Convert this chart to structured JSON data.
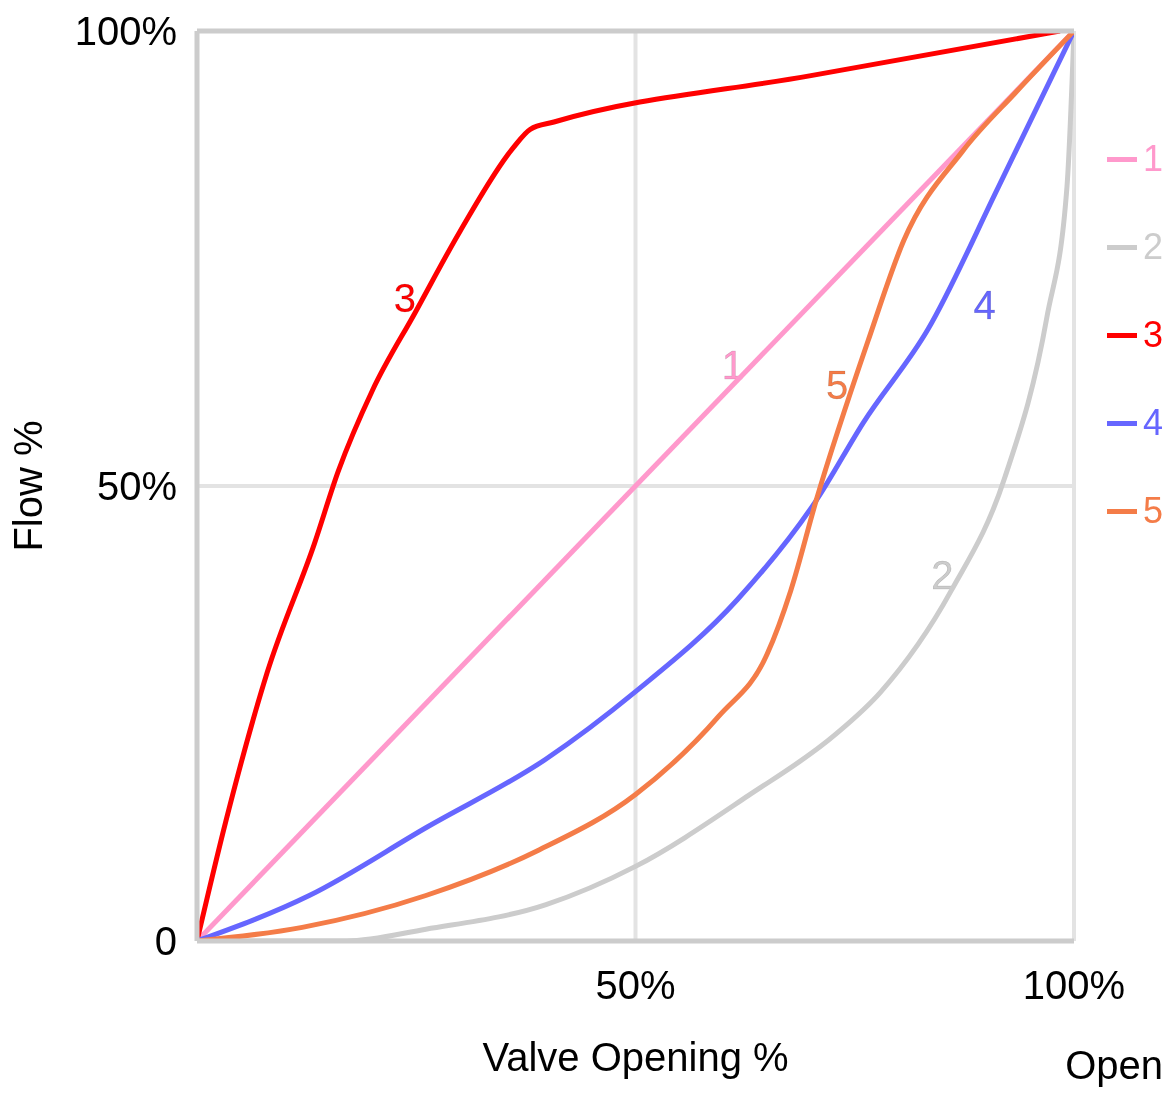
{
  "chart_data": {
    "type": "line",
    "xlabel": "Valve Opening %",
    "ylabel": "Flow %",
    "xlim": [
      0,
      100
    ],
    "ylim": [
      0,
      100
    ],
    "xticks": [
      {
        "value": 0,
        "label": null
      },
      {
        "value": 50,
        "label": "50%"
      },
      {
        "value": 100,
        "label": "100%"
      }
    ],
    "yticks": [
      0,
      {
        "value": 50,
        "label": "50%"
      },
      {
        "value": 100,
        "label": "100%"
      }
    ],
    "grid": true,
    "marker": "none",
    "line_style": "solid",
    "legend": "right",
    "series": [
      {
        "name": "1",
        "color": "#ff99cc",
        "x": [
          0,
          100
        ],
        "values": [
          0,
          100
        ]
      },
      {
        "name": "2",
        "color": "#cccccc",
        "x": [
          0,
          17,
          26.1,
          39.8,
          50,
          62.9,
          72.8,
          77.9,
          86,
          92.1,
          96.9,
          99.2,
          100
        ],
        "values": [
          0,
          0,
          1.3,
          4,
          8.2,
          16,
          22.7,
          27.3,
          38.5,
          50.9,
          68.5,
          82.9,
          100
        ]
      },
      {
        "name": "3",
        "color": "#ff0000",
        "x": [
          0,
          3.3,
          8,
          13.4,
          16.1,
          20,
          24.9,
          30,
          36,
          38,
          40.7,
          70,
          98.4
        ],
        "values": [
          0,
          13.2,
          29.5,
          43.7,
          51.6,
          60.5,
          69.1,
          78,
          87.1,
          89.2,
          90,
          95.1,
          100
        ]
      },
      {
        "name": "4",
        "color": "#6666ff",
        "x": [
          0,
          12.8,
          26.2,
          39.8,
          50,
          61.6,
          70.6,
          76,
          83.4,
          91.4,
          100
        ],
        "values": [
          0,
          5,
          12.5,
          20,
          27.4,
          37.5,
          48.4,
          57,
          67.3,
          82.9,
          100
        ]
      },
      {
        "name": "5",
        "color": "#f47c48",
        "x": [
          0,
          12,
          26.1,
          39,
          50,
          59.5,
          65,
          67.7,
          70.6,
          76.5,
          80.6,
          87.3,
          93.5,
          100
        ],
        "values": [
          0,
          1.5,
          5,
          10,
          16.1,
          24.7,
          31.5,
          38.5,
          48.4,
          65.9,
          77,
          86.8,
          93.4,
          100
        ]
      }
    ],
    "annotations": [
      "Open"
    ]
  }
}
